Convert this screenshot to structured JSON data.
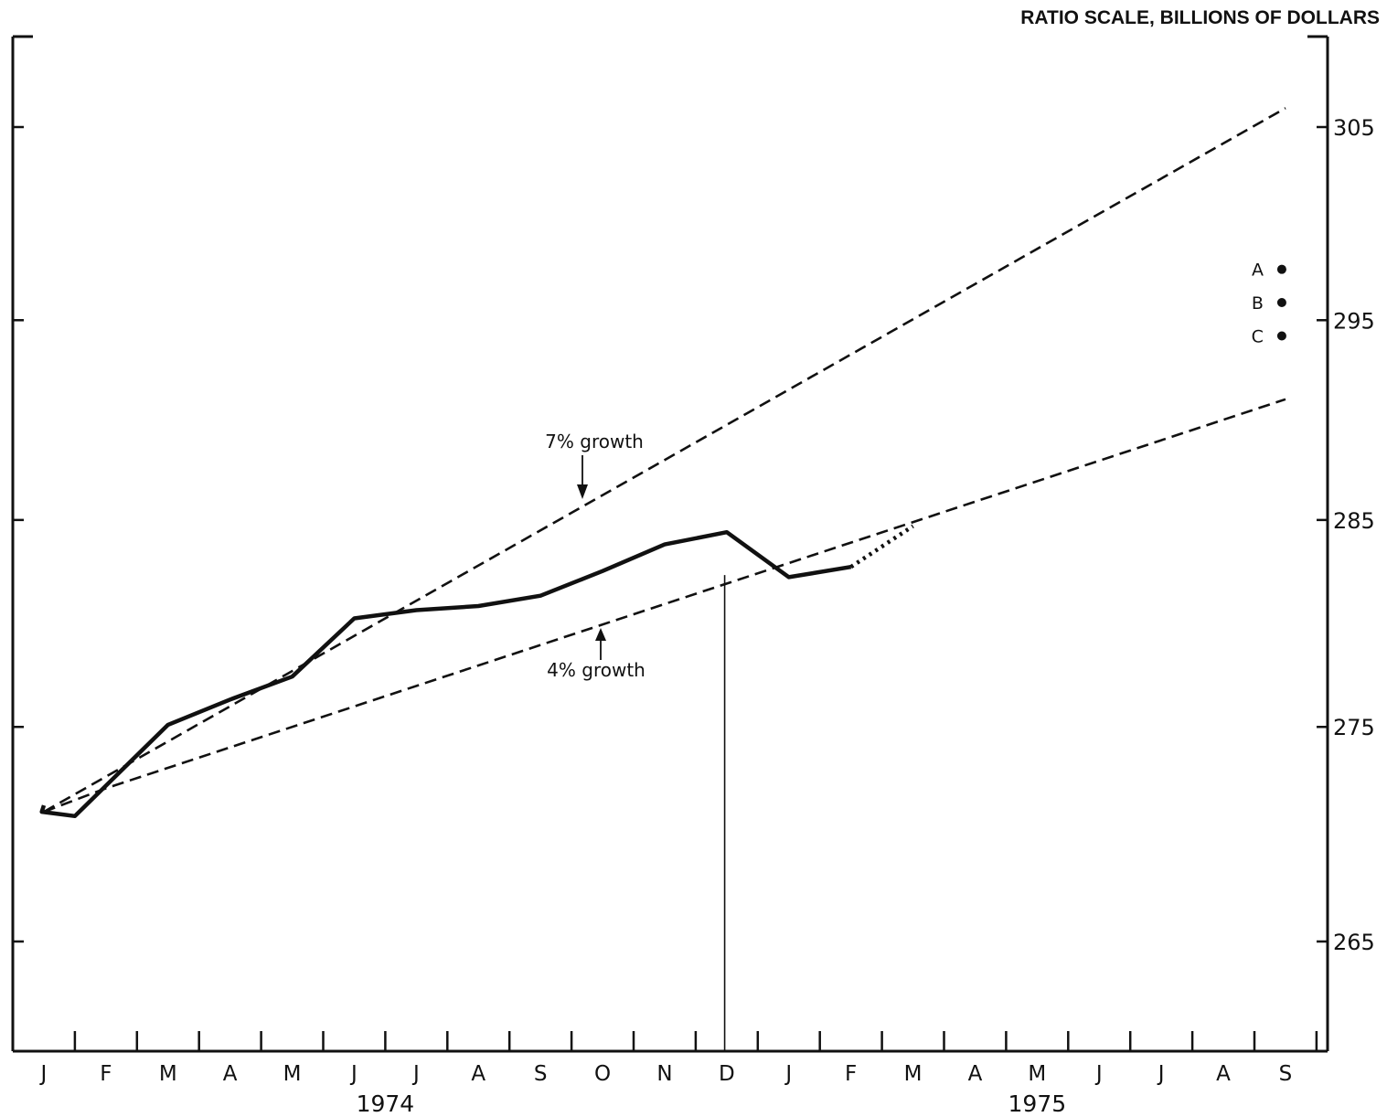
{
  "chart_data": {
    "type": "line",
    "title": "",
    "ylabel": "RATIO SCALE, BILLIONS OF DOLLARS",
    "xlabel": "",
    "y_scale": "log",
    "ylim": [
      260,
      310
    ],
    "y_ticks": [
      265,
      275,
      285,
      295,
      305
    ],
    "x_months": [
      {
        "label": "J",
        "year": "1974"
      },
      {
        "label": "F",
        "year": "1974"
      },
      {
        "label": "M",
        "year": "1974"
      },
      {
        "label": "A",
        "year": "1974"
      },
      {
        "label": "M",
        "year": "1974"
      },
      {
        "label": "J",
        "year": "1974"
      },
      {
        "label": "J",
        "year": "1974"
      },
      {
        "label": "A",
        "year": "1974"
      },
      {
        "label": "S",
        "year": "1974"
      },
      {
        "label": "O",
        "year": "1974"
      },
      {
        "label": "N",
        "year": "1974"
      },
      {
        "label": "D",
        "year": "1974"
      },
      {
        "label": "J",
        "year": "1975"
      },
      {
        "label": "F",
        "year": "1975"
      },
      {
        "label": "M",
        "year": "1975"
      },
      {
        "label": "A",
        "year": "1975"
      },
      {
        "label": "M",
        "year": "1975"
      },
      {
        "label": "J",
        "year": "1975"
      },
      {
        "label": "J",
        "year": "1975"
      },
      {
        "label": "A",
        "year": "1975"
      },
      {
        "label": "S",
        "year": "1975"
      }
    ],
    "years": [
      "1974",
      "1975"
    ],
    "series": [
      {
        "style": "solid",
        "points": [
          {
            "x": "1974-01",
            "y": 271.3
          },
          {
            "x": "1974-01-15",
            "y": 271.0
          },
          {
            "x": "1974-01-31",
            "y": 270.8
          },
          {
            "x": "1974-03",
            "y": 275.1
          },
          {
            "x": "1974-04",
            "y": 276.3
          },
          {
            "x": "1974-05",
            "y": 277.4
          },
          {
            "x": "1974-06",
            "y": 280.2
          },
          {
            "x": "1974-07",
            "y": 280.6
          },
          {
            "x": "1974-08",
            "y": 280.8
          },
          {
            "x": "1974-09",
            "y": 281.3
          },
          {
            "x": "1974-10",
            "y": 282.5
          },
          {
            "x": "1974-11",
            "y": 283.8
          },
          {
            "x": "1974-12",
            "y": 284.4
          },
          {
            "x": "1975-01",
            "y": 282.2
          },
          {
            "x": "1975-02",
            "y": 282.7
          }
        ]
      },
      {
        "style": "dotted",
        "points": [
          {
            "x": "1975-02",
            "y": 282.7
          },
          {
            "x": "1975-03",
            "y": 284.7
          }
        ]
      },
      {
        "style": "dashed",
        "label": "7% growth",
        "points": [
          {
            "x": "1974-01",
            "y": 271.0
          },
          {
            "x": "1975-09",
            "y": 306.0
          }
        ]
      },
      {
        "style": "dashed",
        "label": "4% growth",
        "points": [
          {
            "x": "1974-01",
            "y": 271.0
          },
          {
            "x": "1974-02",
            "y": 272.1
          },
          {
            "x": "1975-09",
            "y": 291.0
          }
        ]
      }
    ],
    "annotations": {
      "growth_7": "7% growth",
      "growth_4": "4% growth"
    },
    "target_points": [
      {
        "label": "A",
        "x": "1975-09",
        "y": 297.6
      },
      {
        "label": "B",
        "x": "1975-09",
        "y": 295.9
      },
      {
        "label": "C",
        "x": "1975-09",
        "y": 294.2
      }
    ],
    "divider_x": "1974-12-15",
    "grid": false
  }
}
